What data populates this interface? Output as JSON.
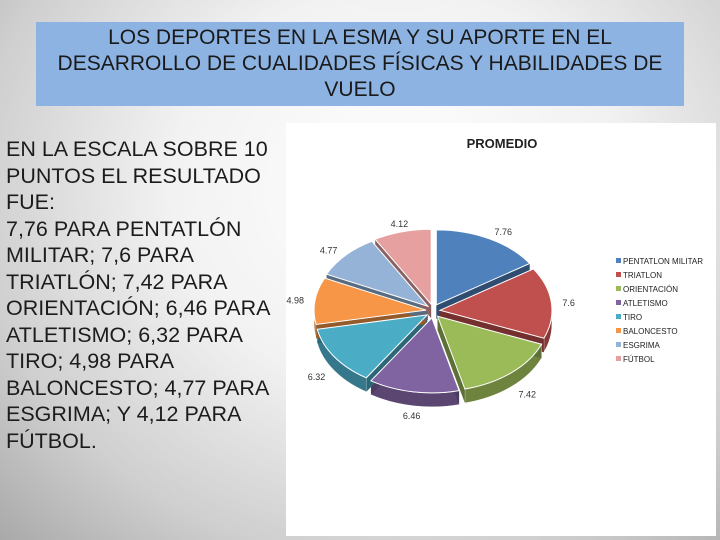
{
  "title": {
    "lines": [
      "LOS  DEPORTES EN LA ESMA Y SU APORTE EN EL",
      "DESARROLLO DE CUALIDADES FÍSICAS Y HABILIDADES DE",
      "VUELO"
    ]
  },
  "body": {
    "lines": [
      "EN LA ESCALA SOBRE 10",
      "PUNTOS EL RESULTADO",
      "FUE:",
      "7,76 PARA PENTATLÓN",
      "MILITAR; 7,6 PARA",
      "TRIATLÓN; 7,42 PARA",
      "ORIENTACIÓN; 6,46 PARA",
      "ATLETISMO; 6,32 PARA",
      "TIRO; 4,98 PARA",
      "BALONCESTO; 4,77 PARA",
      "ESGRIMA; Y 4,12 PARA",
      "FÚTBOL."
    ]
  },
  "chart_data": {
    "type": "pie",
    "title": "PROMEDIO",
    "categories": [
      "PENTATLON MILITAR",
      "TRIATLON",
      "ORIENTACIÓN",
      "ATLETISMO",
      "TIRO",
      "BALONCESTO",
      "ESGRIMA",
      "FÚTBOL"
    ],
    "values": [
      7.76,
      7.6,
      7.42,
      6.46,
      6.32,
      4.98,
      4.77,
      4.12
    ],
    "data_labels": [
      "7.76",
      "7.6",
      "7.42",
      "6.46",
      "6.32",
      "4.98",
      "4.77",
      "4.12"
    ],
    "colors": [
      "#4f81bd",
      "#c0504d",
      "#9bbb59",
      "#8064a2",
      "#4bacc6",
      "#f79646",
      "#95b3d7",
      "#e6a0a0"
    ],
    "exploded": true,
    "style": "3d",
    "legend": "right"
  }
}
